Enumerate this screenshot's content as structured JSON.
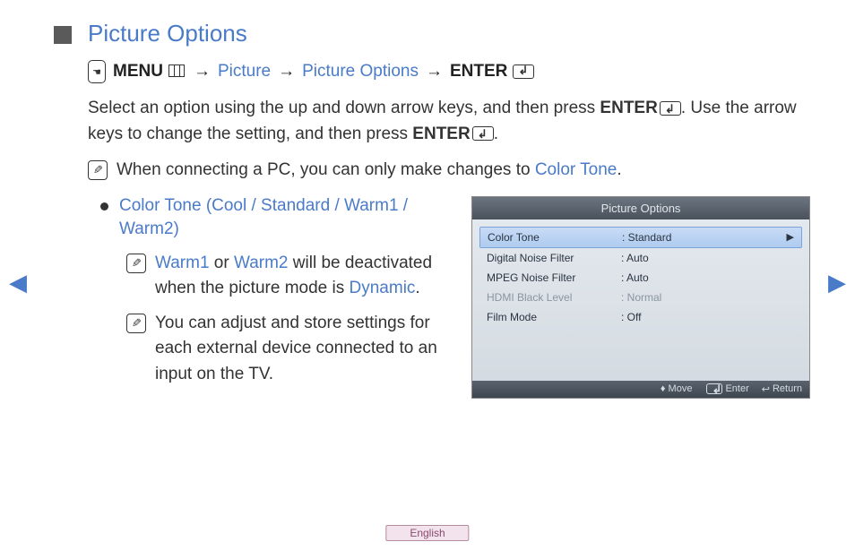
{
  "title": "Picture Options",
  "breadcrumb": {
    "menu_label": "MENU",
    "items": [
      "Picture",
      "Picture Options"
    ],
    "enter_label": "ENTER"
  },
  "para1_a": "Select an option using the up and down arrow keys, and then press ",
  "para1_enter": "ENTER",
  "para1_b": ". Use the arrow keys to change the setting, and then press ",
  "para1_enter2": "ENTER",
  "para1_c": ".",
  "note1_a": "When connecting a PC, you can only make changes to ",
  "note1_link": "Color Tone",
  "note1_b": ".",
  "bullet_title": "Color Tone (Cool / Standard / Warm1 / Warm2)",
  "subnote1_a": "Warm1",
  "subnote1_b": " or ",
  "subnote1_c": "Warm2",
  "subnote1_d": " will be deactivated when the picture mode is ",
  "subnote1_e": "Dynamic",
  "subnote1_f": ".",
  "subnote2": "You can adjust and store settings for each external device connected to an input on the TV.",
  "panel": {
    "title": "Picture Options",
    "rows": [
      {
        "label": "Color Tone",
        "value": "Standard",
        "selected": true,
        "disabled": false
      },
      {
        "label": "Digital Noise Filter",
        "value": "Auto",
        "selected": false,
        "disabled": false
      },
      {
        "label": "MPEG Noise Filter",
        "value": "Auto",
        "selected": false,
        "disabled": false
      },
      {
        "label": "HDMI Black Level",
        "value": "Normal",
        "selected": false,
        "disabled": true
      },
      {
        "label": "Film Mode",
        "value": "Off",
        "selected": false,
        "disabled": false
      }
    ],
    "footer": {
      "move": "Move",
      "enter": "Enter",
      "return": "Return"
    }
  },
  "nav": {
    "left": "◀",
    "right": "▶"
  },
  "language": "English",
  "colors": {
    "link": "#4a7bc8",
    "text": "#333333",
    "panel_header_bg": "#555e68",
    "row_selected_bg": "#b9d3f2"
  }
}
